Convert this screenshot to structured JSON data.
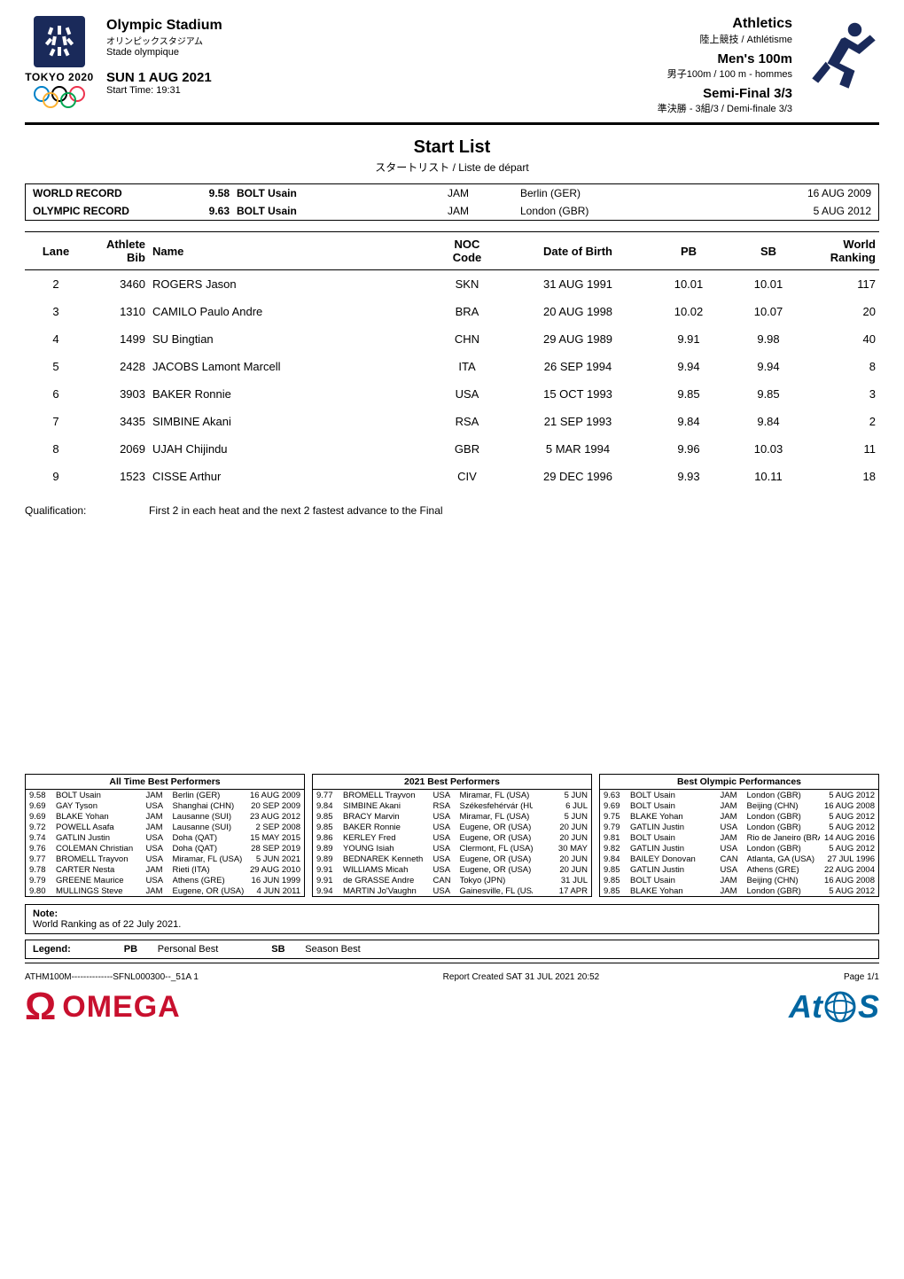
{
  "header": {
    "venue_en": "Olympic Stadium",
    "venue_jp": "オリンピックスタジアム",
    "venue_fr": "Stade olympique",
    "date": "SUN 1 AUG 2021",
    "start_time_label": "Start Time: 19:31",
    "logo_year": "TOKYO 2020",
    "discipline_en": "Athletics",
    "discipline_sub": "陸上競技 / Athlétisme",
    "event_en": "Men's 100m",
    "event_sub": "男子100m / 100 m - hommes",
    "round_en": "Semi-Final 3/3",
    "round_sub": "準決勝 - 3組/3 / Demi-finale 3/3"
  },
  "title": {
    "en": "Start List",
    "sub": "スタートリスト / Liste de départ"
  },
  "records": [
    {
      "label": "WORLD RECORD",
      "time": "9.58",
      "name": "BOLT Usain",
      "noc": "JAM",
      "loc": "Berlin (GER)",
      "date": "16 AUG 2009"
    },
    {
      "label": "OLYMPIC RECORD",
      "time": "9.63",
      "name": "BOLT Usain",
      "noc": "JAM",
      "loc": "London (GBR)",
      "date": "5 AUG 2012"
    }
  ],
  "start_table": {
    "columns": {
      "lane": "Lane",
      "bib": "Athlete\nBib",
      "name": "Name",
      "noc": "NOC\nCode",
      "dob": "Date of Birth",
      "pb": "PB",
      "sb": "SB",
      "wr": "World\nRanking"
    },
    "rows": [
      {
        "lane": "2",
        "bib": "3460",
        "name": "ROGERS Jason",
        "noc": "SKN",
        "dob": "31 AUG 1991",
        "pb": "10.01",
        "sb": "10.01",
        "wr": "117"
      },
      {
        "lane": "3",
        "bib": "1310",
        "name": "CAMILO Paulo Andre",
        "noc": "BRA",
        "dob": "20 AUG 1998",
        "pb": "10.02",
        "sb": "10.07",
        "wr": "20"
      },
      {
        "lane": "4",
        "bib": "1499",
        "name": "SU Bingtian",
        "noc": "CHN",
        "dob": "29 AUG 1989",
        "pb": "9.91",
        "sb": "9.98",
        "wr": "40"
      },
      {
        "lane": "5",
        "bib": "2428",
        "name": "JACOBS Lamont Marcell",
        "noc": "ITA",
        "dob": "26 SEP 1994",
        "pb": "9.94",
        "sb": "9.94",
        "wr": "8"
      },
      {
        "lane": "6",
        "bib": "3903",
        "name": "BAKER Ronnie",
        "noc": "USA",
        "dob": "15 OCT 1993",
        "pb": "9.85",
        "sb": "9.85",
        "wr": "3"
      },
      {
        "lane": "7",
        "bib": "3435",
        "name": "SIMBINE Akani",
        "noc": "RSA",
        "dob": "21 SEP 1993",
        "pb": "9.84",
        "sb": "9.84",
        "wr": "2"
      },
      {
        "lane": "8",
        "bib": "2069",
        "name": "UJAH Chijindu",
        "noc": "GBR",
        "dob": "5 MAR 1994",
        "pb": "9.96",
        "sb": "10.03",
        "wr": "11"
      },
      {
        "lane": "9",
        "bib": "1523",
        "name": "CISSE Arthur",
        "noc": "CIV",
        "dob": "29 DEC 1996",
        "pb": "9.93",
        "sb": "10.11",
        "wr": "18"
      }
    ]
  },
  "qualification": {
    "label": "Qualification:",
    "text": "First 2 in each heat and the next 2 fastest advance to the Final"
  },
  "alltime": {
    "title": "All Time Best Performers",
    "rows": [
      {
        "t": "9.58",
        "n": "BOLT Usain",
        "c": "JAM",
        "l": "Berlin (GER)",
        "d": "16 AUG 2009"
      },
      {
        "t": "9.69",
        "n": "GAY Tyson",
        "c": "USA",
        "l": "Shanghai (CHN)",
        "d": "20 SEP 2009"
      },
      {
        "t": "9.69",
        "n": "BLAKE Yohan",
        "c": "JAM",
        "l": "Lausanne (SUI)",
        "d": "23 AUG 2012"
      },
      {
        "t": "9.72",
        "n": "POWELL Asafa",
        "c": "JAM",
        "l": "Lausanne (SUI)",
        "d": "2 SEP 2008"
      },
      {
        "t": "9.74",
        "n": "GATLIN Justin",
        "c": "USA",
        "l": "Doha (QAT)",
        "d": "15 MAY 2015"
      },
      {
        "t": "9.76",
        "n": "COLEMAN Christian",
        "c": "USA",
        "l": "Doha (QAT)",
        "d": "28 SEP 2019"
      },
      {
        "t": "9.77",
        "n": "BROMELL Trayvon",
        "c": "USA",
        "l": "Miramar, FL (USA)",
        "d": "5 JUN 2021"
      },
      {
        "t": "9.78",
        "n": "CARTER Nesta",
        "c": "JAM",
        "l": "Rieti (ITA)",
        "d": "29 AUG 2010"
      },
      {
        "t": "9.79",
        "n": "GREENE Maurice",
        "c": "USA",
        "l": "Athens (GRE)",
        "d": "16 JUN 1999"
      },
      {
        "t": "9.80",
        "n": "MULLINGS Steve",
        "c": "JAM",
        "l": "Eugene, OR (USA)",
        "d": "4 JUN 2011"
      }
    ]
  },
  "season": {
    "title": "2021 Best Performers",
    "rows": [
      {
        "t": "9.77",
        "n": "BROMELL Trayvon",
        "c": "USA",
        "l": "Miramar, FL (USA)",
        "d": "5 JUN"
      },
      {
        "t": "9.84",
        "n": "SIMBINE Akani",
        "c": "RSA",
        "l": "Székesfehérvár (HUN)",
        "d": "6 JUL"
      },
      {
        "t": "9.85",
        "n": "BRACY Marvin",
        "c": "USA",
        "l": "Miramar, FL (USA)",
        "d": "5 JUN"
      },
      {
        "t": "9.85",
        "n": "BAKER Ronnie",
        "c": "USA",
        "l": "Eugene, OR (USA)",
        "d": "20 JUN"
      },
      {
        "t": "9.86",
        "n": "KERLEY Fred",
        "c": "USA",
        "l": "Eugene, OR (USA)",
        "d": "20 JUN"
      },
      {
        "t": "9.89",
        "n": "YOUNG Isiah",
        "c": "USA",
        "l": "Clermont, FL (USA)",
        "d": "30 MAY"
      },
      {
        "t": "9.89",
        "n": "BEDNAREK Kenneth",
        "c": "USA",
        "l": "Eugene, OR (USA)",
        "d": "20 JUN"
      },
      {
        "t": "9.91",
        "n": "WILLIAMS Micah",
        "c": "USA",
        "l": "Eugene, OR (USA)",
        "d": "20 JUN"
      },
      {
        "t": "9.91",
        "n": "de GRASSE Andre",
        "c": "CAN",
        "l": "Tokyo (JPN)",
        "d": "31 JUL"
      },
      {
        "t": "9.94",
        "n": "MARTIN Jo'Vaughn",
        "c": "USA",
        "l": "Gainesville, FL (USA)",
        "d": "17 APR"
      }
    ]
  },
  "olympic": {
    "title": "Best Olympic Performances",
    "rows": [
      {
        "t": "9.63",
        "n": "BOLT Usain",
        "c": "JAM",
        "l": "London (GBR)",
        "d": "5 AUG 2012"
      },
      {
        "t": "9.69",
        "n": "BOLT Usain",
        "c": "JAM",
        "l": "Beijing (CHN)",
        "d": "16 AUG 2008"
      },
      {
        "t": "9.75",
        "n": "BLAKE Yohan",
        "c": "JAM",
        "l": "London (GBR)",
        "d": "5 AUG 2012"
      },
      {
        "t": "9.79",
        "n": "GATLIN Justin",
        "c": "USA",
        "l": "London (GBR)",
        "d": "5 AUG 2012"
      },
      {
        "t": "9.81",
        "n": "BOLT Usain",
        "c": "JAM",
        "l": "Rio de Janeiro (BRA)",
        "d": "14 AUG 2016"
      },
      {
        "t": "9.82",
        "n": "GATLIN Justin",
        "c": "USA",
        "l": "London (GBR)",
        "d": "5 AUG 2012"
      },
      {
        "t": "9.84",
        "n": "BAILEY Donovan",
        "c": "CAN",
        "l": "Atlanta, GA (USA)",
        "d": "27 JUL 1996"
      },
      {
        "t": "9.85",
        "n": "GATLIN Justin",
        "c": "USA",
        "l": "Athens (GRE)",
        "d": "22 AUG 2004"
      },
      {
        "t": "9.85",
        "n": "BOLT Usain",
        "c": "JAM",
        "l": "Beijing (CHN)",
        "d": "16 AUG 2008"
      },
      {
        "t": "9.85",
        "n": "BLAKE Yohan",
        "c": "JAM",
        "l": "London (GBR)",
        "d": "5 AUG 2012"
      }
    ]
  },
  "note": {
    "label": "Note:",
    "text": "World Ranking as of 22 July 2021."
  },
  "legend": {
    "label": "Legend:",
    "items": [
      {
        "abbr": "PB",
        "text": "Personal Best"
      },
      {
        "abbr": "SB",
        "text": "Season Best"
      }
    ]
  },
  "footer": {
    "left": "ATHM100M--------------SFNL000300--_51A 1",
    "mid": "Report Created  SAT 31 JUL 2021 20:52",
    "right": "Page 1/1",
    "omega": "OMEGA",
    "atos": "At   S"
  },
  "colors": {
    "tokyo_navy": "#1a2a5a",
    "omega_red": "#c8102e",
    "atos_blue": "#0066a1"
  }
}
